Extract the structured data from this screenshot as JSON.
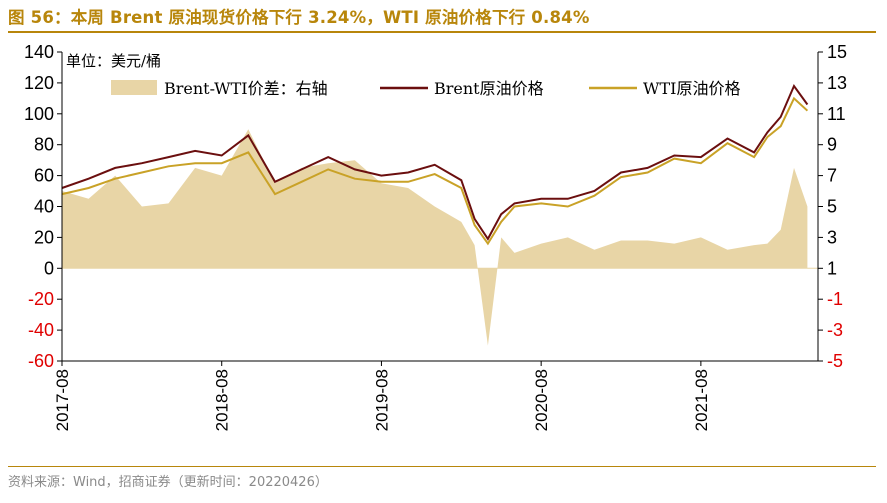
{
  "header": {
    "title": "图 56：本周 Brent 原油现货价格下行 3.24%，WTI 原油价格下行 0.84%"
  },
  "footer": {
    "source": "资料来源：Wind，招商证券（更新时间：20220426）"
  },
  "colors": {
    "title": "#b8860b",
    "brent": "#6b0f0f",
    "wti": "#c9a227",
    "spread_fill": "#e8d5a6",
    "negative_axis": "#e00000"
  },
  "chart_data": {
    "type": "line",
    "unit_label": "单位：美元/桶",
    "legend": [
      "Brent-WTI价差：右轴",
      "Brent原油价格",
      "WTI原油价格"
    ],
    "legend_position": "top",
    "grid": false,
    "x_tick_labels": [
      "2017-08",
      "2018-08",
      "2019-08",
      "2020-08",
      "2021-08"
    ],
    "x_range": [
      "2017-08",
      "2022-04"
    ],
    "left_axis": {
      "ticks": [
        140,
        120,
        100,
        80,
        60,
        40,
        20,
        0,
        -20,
        -40,
        -60
      ],
      "ylim": [
        -60,
        140
      ]
    },
    "right_axis": {
      "ticks": [
        15,
        13,
        11,
        9,
        7,
        5,
        3,
        1,
        -1,
        -3,
        -5
      ],
      "ylim": [
        -5,
        15
      ]
    },
    "months": [
      "2017-08",
      "2017-10",
      "2017-12",
      "2018-02",
      "2018-04",
      "2018-06",
      "2018-08",
      "2018-10",
      "2018-12",
      "2019-02",
      "2019-04",
      "2019-06",
      "2019-08",
      "2019-10",
      "2019-12",
      "2020-02",
      "2020-03",
      "2020-04",
      "2020-05",
      "2020-06",
      "2020-08",
      "2020-10",
      "2020-12",
      "2021-02",
      "2021-04",
      "2021-06",
      "2021-08",
      "2021-10",
      "2021-12",
      "2022-01",
      "2022-02",
      "2022-03",
      "2022-04"
    ],
    "series": [
      {
        "name": "Brent原油价格",
        "axis": "left",
        "values": [
          52,
          58,
          65,
          68,
          72,
          76,
          73,
          86,
          56,
          64,
          72,
          64,
          60,
          62,
          67,
          57,
          32,
          19,
          35,
          42,
          45,
          45,
          50,
          62,
          65,
          73,
          72,
          84,
          75,
          88,
          98,
          118,
          106
        ]
      },
      {
        "name": "WTI原油价格",
        "axis": "left",
        "values": [
          48,
          52,
          58,
          62,
          66,
          68,
          68,
          75,
          48,
          56,
          64,
          58,
          56,
          56,
          61,
          52,
          28,
          16,
          30,
          40,
          42,
          40,
          47,
          59,
          62,
          71,
          68,
          81,
          72,
          85,
          92,
          110,
          102
        ]
      },
      {
        "name": "Brent-WTI价差：右轴",
        "axis": "right",
        "kind": "area",
        "values": [
          6,
          5.5,
          7,
          5,
          5.2,
          7.5,
          7,
          10,
          6.5,
          7.5,
          7.8,
          8,
          6.5,
          6.2,
          5,
          4,
          2.5,
          -4,
          3,
          2,
          2.6,
          3,
          2.2,
          2.8,
          2.8,
          2.6,
          3,
          2.2,
          2.5,
          2.6,
          3.5,
          7.5,
          5
        ]
      }
    ]
  }
}
